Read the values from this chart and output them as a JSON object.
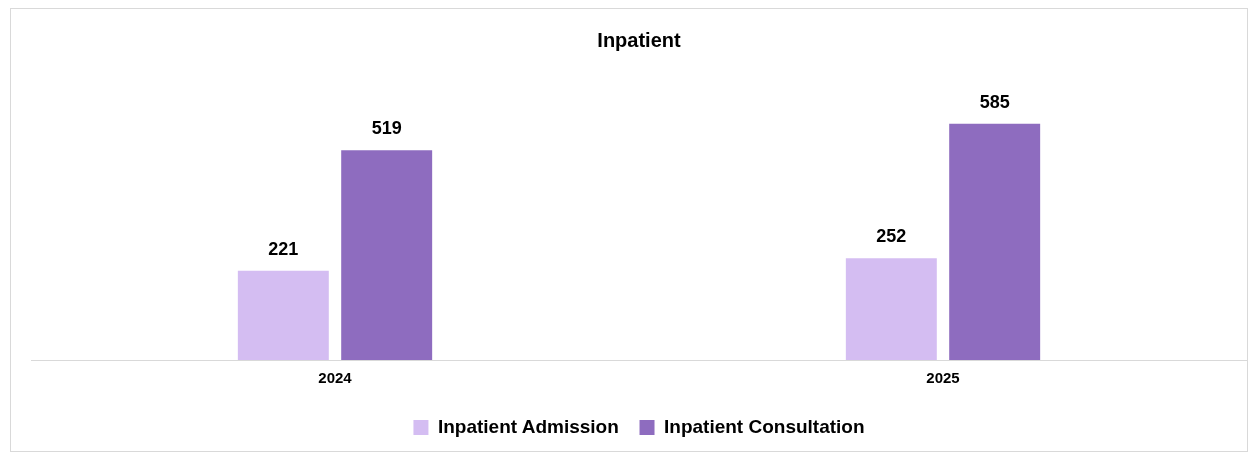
{
  "chart_data": {
    "type": "bar",
    "title": "Inpatient",
    "categories": [
      "2024",
      "2025"
    ],
    "series": [
      {
        "name": "Inpatient Admission",
        "color": "#d4bdf2",
        "values": [
          221,
          252
        ]
      },
      {
        "name": "Inpatient Consultation",
        "color": "#8e6cbf",
        "values": [
          519,
          585
        ]
      }
    ],
    "data_labels": true,
    "grid": false,
    "legend": "bottom",
    "tick_labels": "x"
  }
}
